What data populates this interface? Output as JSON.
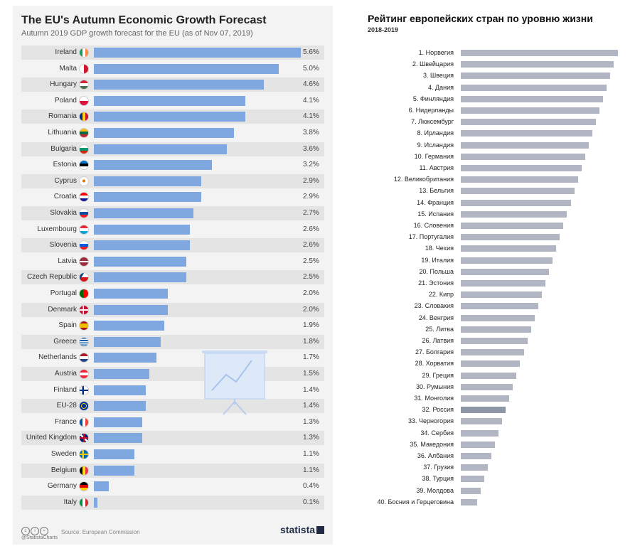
{
  "left_chart": {
    "title": "The EU's Autumn Economic Growth Forecast",
    "subtitle": "Autumn 2019 GDP growth forecast for the EU (as of Nov 07, 2019)",
    "source_label": "Source: European Commission",
    "handle": "@StatistaCharts",
    "logo_text": "statista",
    "bar_color": "#7fa7e0"
  },
  "right_chart": {
    "title": "Рейтинг европейских стран по уровню жизни",
    "subtitle": "2018-2019",
    "bar_color": "#b1b6c2",
    "highlight_color": "#8e95a4"
  },
  "chart_data": [
    {
      "type": "bar",
      "orientation": "horizontal",
      "title": "The EU's Autumn Economic Growth Forecast",
      "subtitle": "Autumn 2019 GDP growth forecast for the EU (as of Nov 07, 2019)",
      "unit": "%",
      "xlim": [
        0,
        5.6
      ],
      "grid": false,
      "categories": [
        "Ireland",
        "Malta",
        "Hungary",
        "Poland",
        "Romania",
        "Lithuania",
        "Bulgaria",
        "Estonia",
        "Cyprus",
        "Croatia",
        "Slovakia",
        "Luxembourg",
        "Slovenia",
        "Latvia",
        "Czech Republic",
        "Portugal",
        "Denmark",
        "Spain",
        "Greece",
        "Netherlands",
        "Austria",
        "Finland",
        "EU-28",
        "France",
        "United Kingdom",
        "Sweden",
        "Belgium",
        "Germany",
        "Italy"
      ],
      "values": [
        5.6,
        5.0,
        4.6,
        4.1,
        4.1,
        3.8,
        3.6,
        3.2,
        2.9,
        2.9,
        2.7,
        2.6,
        2.6,
        2.5,
        2.5,
        2.0,
        2.0,
        1.9,
        1.8,
        1.7,
        1.5,
        1.4,
        1.4,
        1.3,
        1.3,
        1.1,
        1.1,
        0.4,
        0.1
      ],
      "value_labels": [
        "5.6%",
        "5.0%",
        "4.6%",
        "4.1%",
        "4.1%",
        "3.8%",
        "3.6%",
        "3.2%",
        "2.9%",
        "2.9%",
        "2.7%",
        "2.6%",
        "2.6%",
        "2.5%",
        "2.5%",
        "2.0%",
        "2.0%",
        "1.9%",
        "1.8%",
        "1.7%",
        "1.5%",
        "1.4%",
        "1.4%",
        "1.3%",
        "1.3%",
        "1.1%",
        "1.1%",
        "0.4%",
        "0.1%"
      ],
      "source": "Source: European Commission"
    },
    {
      "type": "bar",
      "orientation": "horizontal",
      "title": "Рейтинг европейских стран по уровню жизни",
      "subtitle": "2018-2019",
      "grid": false,
      "categories": [
        "1. Норвегия",
        "2. Швейцария",
        "3. Швеция",
        "4. Дания",
        "5. Финляндия",
        "6. Нидерланды",
        "7. Люксембург",
        "8. Ирландия",
        "9. Исландия",
        "10. Германия",
        "11. Австрия",
        "12. Великобритания",
        "13. Бельгия",
        "14. Франция",
        "15. Испания",
        "16. Словения",
        "17. Португалия",
        "18. Чехия",
        "19. Италия",
        "20. Польша",
        "21. Эстония",
        "22. Кипр",
        "23. Словакия",
        "24. Венгрия",
        "25. Литва",
        "26. Латвия",
        "27. Болгария",
        "28. Хорватия",
        "29. Греция",
        "30. Румыния",
        "31. Монголия",
        "32. Россия",
        "33. Черногория",
        "34. Сербия",
        "35. Македония",
        "36. Албания",
        "37. Грузия",
        "38. Турция",
        "39. Молдова",
        "40. Босния и Герцеговина"
      ],
      "values": [
        221,
        215,
        210,
        205,
        200,
        195,
        190,
        185,
        180,
        175,
        170,
        165,
        160,
        155,
        149,
        144,
        139,
        134,
        129,
        124,
        119,
        114,
        109,
        104,
        99,
        94,
        89,
        83,
        78,
        73,
        68,
        63,
        58,
        53,
        48,
        43,
        38,
        33,
        28,
        23
      ],
      "highlight": "32. Россия"
    }
  ]
}
